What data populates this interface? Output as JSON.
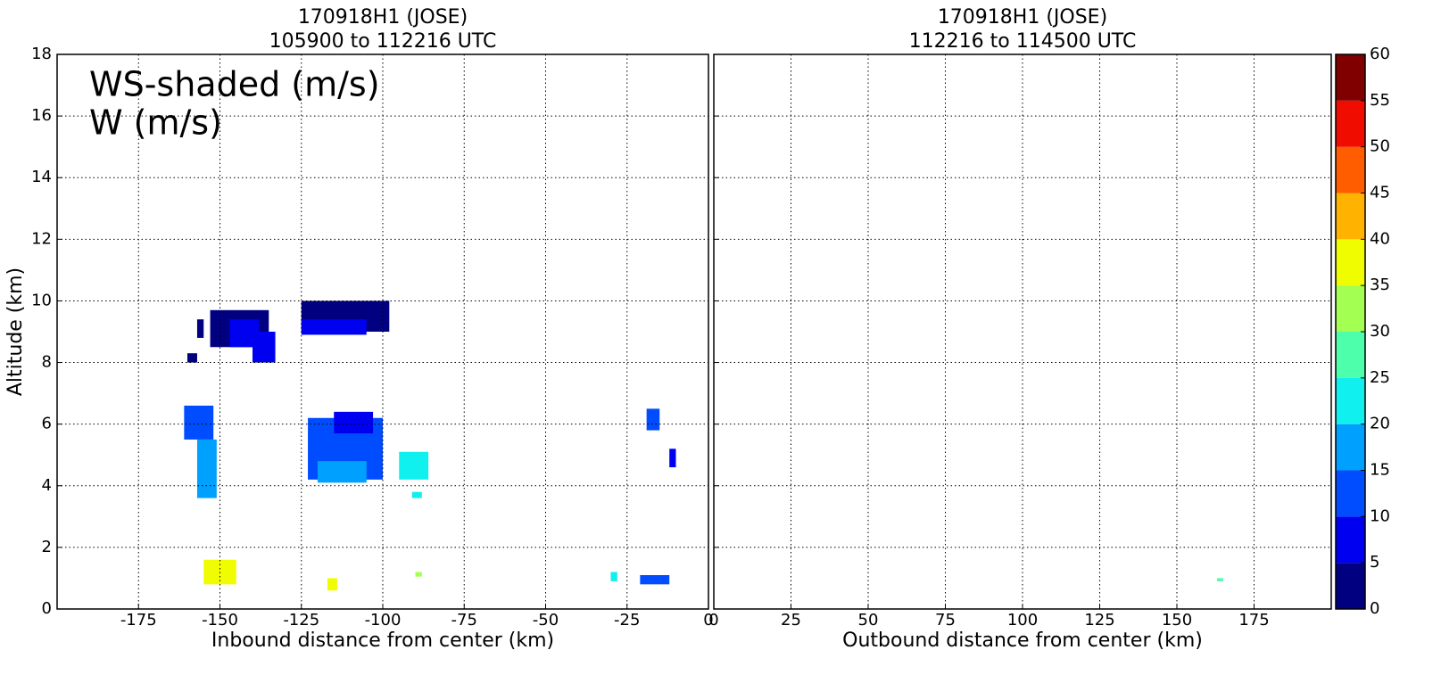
{
  "chart_data": [
    {
      "type": "heatmap",
      "title": [
        "170918H1 (JOSE)",
        "105900 to 112216 UTC"
      ],
      "xlabel": "Inbound distance from center (km)",
      "ylabel": "Altitude (km)",
      "annotations": [
        "WS-shaded (m/s)",
        "W (m/s)"
      ],
      "xlim": [
        -200,
        0
      ],
      "xticks": [
        -175,
        -150,
        -125,
        -100,
        -75,
        -50,
        -25,
        0
      ],
      "ylim": [
        0,
        18
      ],
      "yticks": [
        0,
        2,
        4,
        6,
        8,
        10,
        12,
        14,
        16,
        18
      ],
      "grid": true,
      "cells": [
        {
          "x": [
            -153,
            -135
          ],
          "y": [
            8.5,
            9.7
          ],
          "ws": 2
        },
        {
          "x": [
            -147,
            -138
          ],
          "y": [
            8.5,
            9.4
          ],
          "ws": 7
        },
        {
          "x": [
            -140,
            -133
          ],
          "y": [
            8,
            9
          ],
          "ws": 7
        },
        {
          "x": [
            -160,
            -157
          ],
          "y": [
            8,
            8.3
          ],
          "ws": 2
        },
        {
          "x": [
            -157,
            -155
          ],
          "y": [
            8.8,
            9.4
          ],
          "ws": 2
        },
        {
          "x": [
            -125,
            -98
          ],
          "y": [
            9,
            10
          ],
          "ws": 2
        },
        {
          "x": [
            -125,
            -105
          ],
          "y": [
            8.9,
            9.4
          ],
          "ws": 7
        },
        {
          "x": [
            -161,
            -152
          ],
          "y": [
            5.5,
            6.6
          ],
          "ws": 12
        },
        {
          "x": [
            -157,
            -151
          ],
          "y": [
            3.6,
            5.5
          ],
          "ws": 17
        },
        {
          "x": [
            -123,
            -100
          ],
          "y": [
            4.2,
            6.2
          ],
          "ws": 12
        },
        {
          "x": [
            -115,
            -103
          ],
          "y": [
            5.7,
            6.4
          ],
          "ws": 7
        },
        {
          "x": [
            -120,
            -105
          ],
          "y": [
            4.1,
            4.8
          ],
          "ws": 17
        },
        {
          "x": [
            -95,
            -86
          ],
          "y": [
            4.2,
            5.1
          ],
          "ws": 22
        },
        {
          "x": [
            -91,
            -88
          ],
          "y": [
            3.6,
            3.8
          ],
          "ws": 22
        },
        {
          "x": [
            -19,
            -15
          ],
          "y": [
            5.8,
            6.5
          ],
          "ws": 12
        },
        {
          "x": [
            -12,
            -10
          ],
          "y": [
            4.6,
            5.2
          ],
          "ws": 7
        },
        {
          "x": [
            -155,
            -145
          ],
          "y": [
            0.8,
            1.6
          ],
          "ws": 37
        },
        {
          "x": [
            -117,
            -114
          ],
          "y": [
            0.6,
            1
          ],
          "ws": 37
        },
        {
          "x": [
            -90,
            -88
          ],
          "y": [
            1.05,
            1.2
          ],
          "ws": 32
        },
        {
          "x": [
            -30,
            -28
          ],
          "y": [
            0.9,
            1.2
          ],
          "ws": 22
        },
        {
          "x": [
            -21,
            -12
          ],
          "y": [
            0.8,
            1.1
          ],
          "ws": 12
        }
      ]
    },
    {
      "type": "heatmap",
      "title": [
        "170918H1 (JOSE)",
        "112216 to 114500 UTC"
      ],
      "xlabel": "Outbound distance from center (km)",
      "xlim": [
        0,
        200
      ],
      "xticks": [
        0,
        25,
        50,
        75,
        100,
        125,
        150,
        175
      ],
      "ylim": [
        0,
        18
      ],
      "yticks": [
        0,
        2,
        4,
        6,
        8,
        10,
        12,
        14,
        16,
        18
      ],
      "grid": true,
      "cells": [
        {
          "x": [
            163,
            165
          ],
          "y": [
            0.9,
            1
          ],
          "ws": 27
        }
      ]
    }
  ],
  "colorbar": {
    "ticks": [
      0,
      5,
      10,
      15,
      20,
      25,
      30,
      35,
      40,
      45,
      50,
      55,
      60
    ],
    "colors": [
      "#000080",
      "#0000f1",
      "#004dff",
      "#00a0ff",
      "#10f0ee",
      "#4dffaa",
      "#a4ff53",
      "#f0fc00",
      "#ffb200",
      "#ff5d00",
      "#f10c00",
      "#800000"
    ]
  }
}
